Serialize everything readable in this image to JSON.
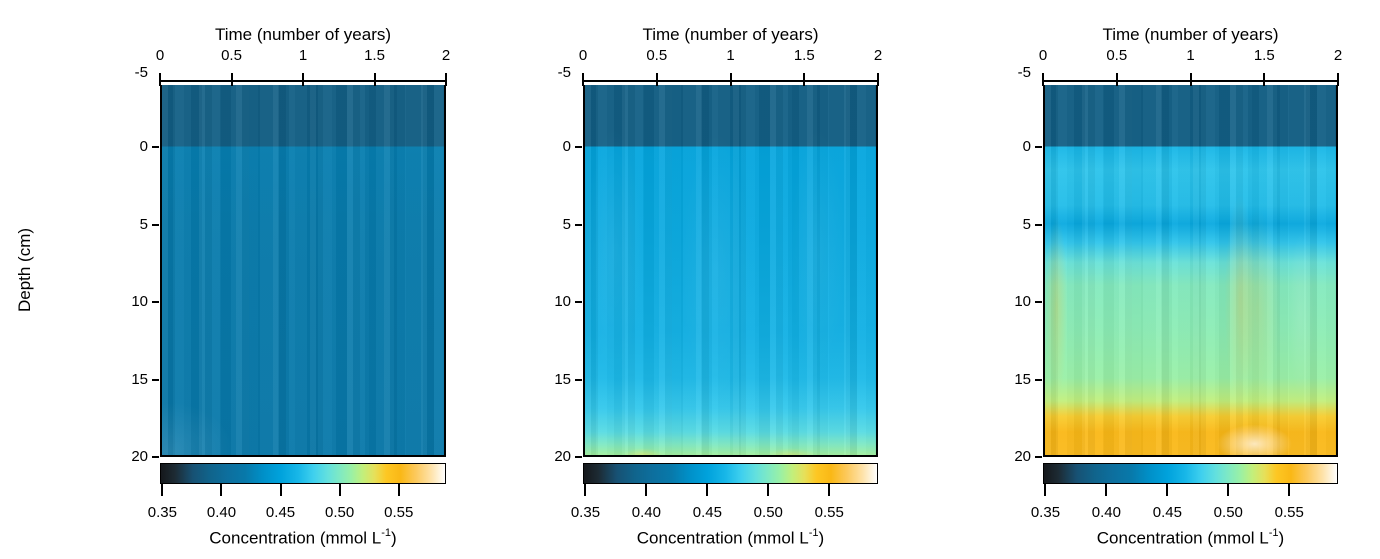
{
  "figure": {
    "background": "#ffffff",
    "axes": {
      "x_title": "Time (number of years)",
      "y_title": "Depth (cm)",
      "x_ticks": [
        {
          "label": "0",
          "value": 0
        },
        {
          "label": "0.5",
          "value": 0.5
        },
        {
          "label": "1",
          "value": 1
        },
        {
          "label": "1.5",
          "value": 1.5
        },
        {
          "label": "2",
          "value": 2
        }
      ],
      "y_ticks": [
        {
          "label": "-5",
          "value": -5
        },
        {
          "label": "0",
          "value": 0
        },
        {
          "label": "5",
          "value": 5
        },
        {
          "label": "10",
          "value": 10
        },
        {
          "label": "15",
          "value": 15
        },
        {
          "label": "20",
          "value": 20
        }
      ],
      "cb_title_pre": "Concentration (mmol L",
      "cb_title_sup": "-1",
      "cb_title_post": ")"
    }
  },
  "chart_data": {
    "type": "heatmap",
    "x_label": "Time (number of years)",
    "y_label": "Depth (cm)",
    "x_range": [
      0,
      2
    ],
    "y_range": [
      -5,
      20
    ],
    "y_inverted": true,
    "image_depth_range": [
      -4,
      20
    ],
    "colorbar": {
      "label": "Concentration (mmol L-1)",
      "units": "mmol L-1",
      "range": [
        0.348,
        0.59
      ],
      "ticks": [
        {
          "label": "0.35",
          "value": 0.35
        },
        {
          "label": "0.40",
          "value": 0.4
        },
        {
          "label": "0.45",
          "value": 0.45
        },
        {
          "label": "0.50",
          "value": 0.5
        },
        {
          "label": "0.55",
          "value": 0.55
        }
      ],
      "stops": [
        {
          "v": 0.348,
          "c": "#15181b"
        },
        {
          "v": 0.36,
          "c": "#1d2b34"
        },
        {
          "v": 0.375,
          "c": "#175173"
        },
        {
          "v": 0.39,
          "c": "#10648c"
        },
        {
          "v": 0.405,
          "c": "#0d6f9e"
        },
        {
          "v": 0.42,
          "c": "#0879aa"
        },
        {
          "v": 0.435,
          "c": "#0090c8"
        },
        {
          "v": 0.45,
          "c": "#00a2dc"
        },
        {
          "v": 0.465,
          "c": "#18b7e8"
        },
        {
          "v": 0.478,
          "c": "#3fd0ee"
        },
        {
          "v": 0.49,
          "c": "#63e0de"
        },
        {
          "v": 0.5,
          "c": "#7ee9c4"
        },
        {
          "v": 0.51,
          "c": "#99f0a6"
        },
        {
          "v": 0.52,
          "c": "#c2ef7c"
        },
        {
          "v": 0.53,
          "c": "#e6e05a"
        },
        {
          "v": 0.54,
          "c": "#fdc723"
        },
        {
          "v": 0.552,
          "c": "#fab816"
        },
        {
          "v": 0.565,
          "c": "#fcc95c"
        },
        {
          "v": 0.578,
          "c": "#fee2a8"
        },
        {
          "v": 0.59,
          "c": "#ffffff"
        }
      ]
    },
    "panels": [
      {
        "position": "left",
        "depth_profile": {
          "depths": [
            -4,
            0,
            0,
            5,
            20
          ],
          "concentration": [
            0.386,
            0.386,
            0.423,
            0.421,
            0.419
          ]
        },
        "notes": "Dark teal overlying-water band from -4 to 0 cm (~0.386 mmol/L); nearly uniform blue (~0.42 mmol/L) through the sediment down to 20 cm with faint vertical streaking over time."
      },
      {
        "position": "middle",
        "depth_profile": {
          "depths": [
            -4,
            0,
            0,
            6,
            12,
            15,
            17,
            18.5,
            19.3,
            20
          ],
          "concentration": [
            0.386,
            0.386,
            0.452,
            0.455,
            0.46,
            0.466,
            0.474,
            0.486,
            0.5,
            0.512
          ]
        },
        "notes": "Dark teal band above 0 cm; brighter blue (~0.45 mmol/L) below the interface, gradually increasing with depth to cyan then green (~0.51 mmol/L) at 20 cm, with small yellowish patches at the very bottom near 0.5 and 1.4 years."
      },
      {
        "position": "right",
        "depth_profile": {
          "depths": [
            -4,
            0,
            0,
            1.5,
            3.8,
            5,
            6.2,
            7.5,
            9,
            12,
            15,
            16.5,
            17.5,
            18.5,
            20
          ],
          "concentration": [
            0.386,
            0.386,
            0.464,
            0.471,
            0.468,
            0.455,
            0.472,
            0.492,
            0.502,
            0.505,
            0.51,
            0.52,
            0.538,
            0.552,
            0.553
          ]
        },
        "notes": "Dark teal band above 0 cm; bright cyan from 0-4 cm, a darker blue band near 5 cm, pale green-aqua (~0.50-0.51 mmol/L) from 8-15 cm with warm vertical plumes near 0.1 and 1.3 years, grading to orange (~0.55 mmol/L) below 17 cm with a pale cream patch near 1.4 years at ~19 cm."
      }
    ]
  }
}
